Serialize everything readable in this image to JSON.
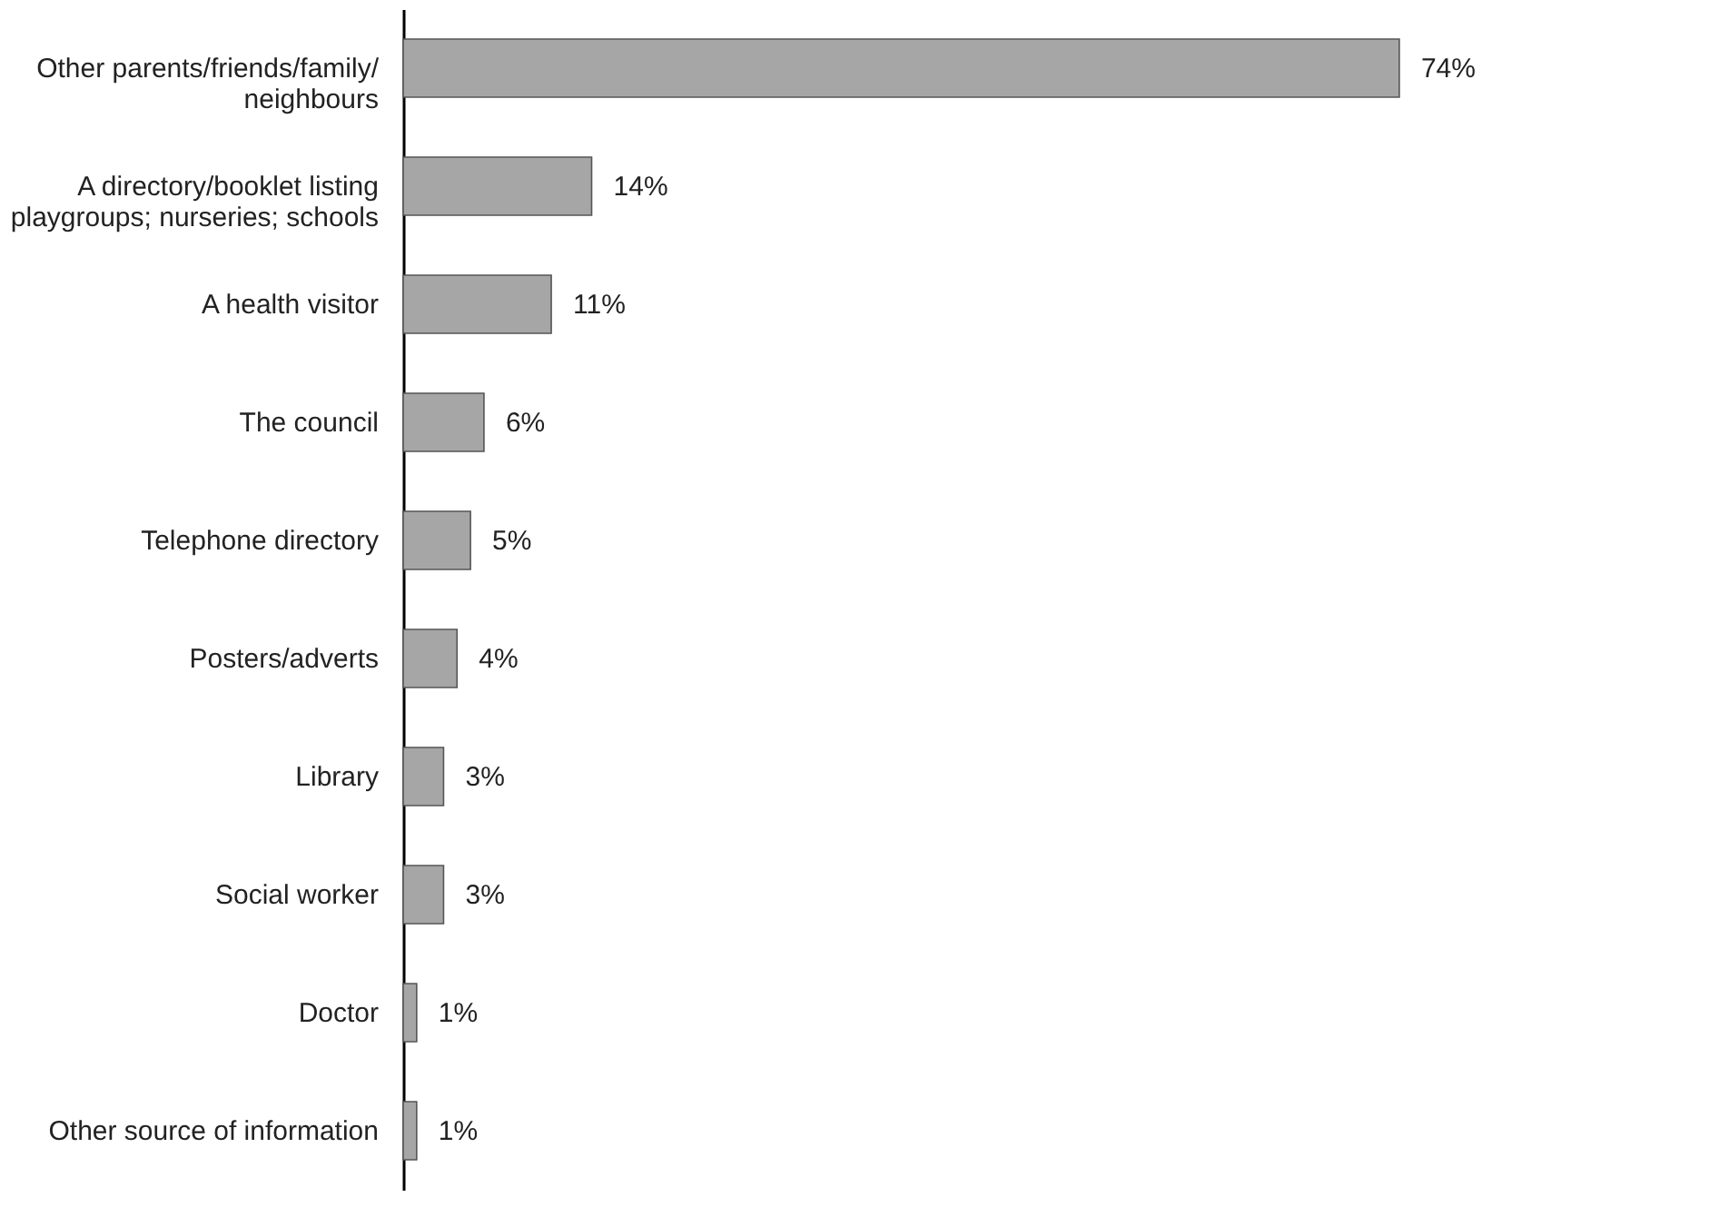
{
  "chart_data": {
    "type": "bar",
    "orientation": "horizontal",
    "categories": [
      "Other parents/friends/family/\nneighbours",
      "A directory/booklet listing\nplaygroups; nurseries; schools",
      "A health visitor",
      "The council",
      "Telephone directory",
      "Posters/adverts",
      "Library",
      "Social worker",
      "Doctor",
      "Other source of information"
    ],
    "values": [
      74,
      14,
      11,
      6,
      5,
      4,
      3,
      3,
      1,
      1
    ],
    "value_labels": [
      "74%",
      "14%",
      "11%",
      "6%",
      "5%",
      "4%",
      "3%",
      "3%",
      "1%",
      "1%"
    ],
    "color": "#a6a6a6",
    "grid": false
  }
}
